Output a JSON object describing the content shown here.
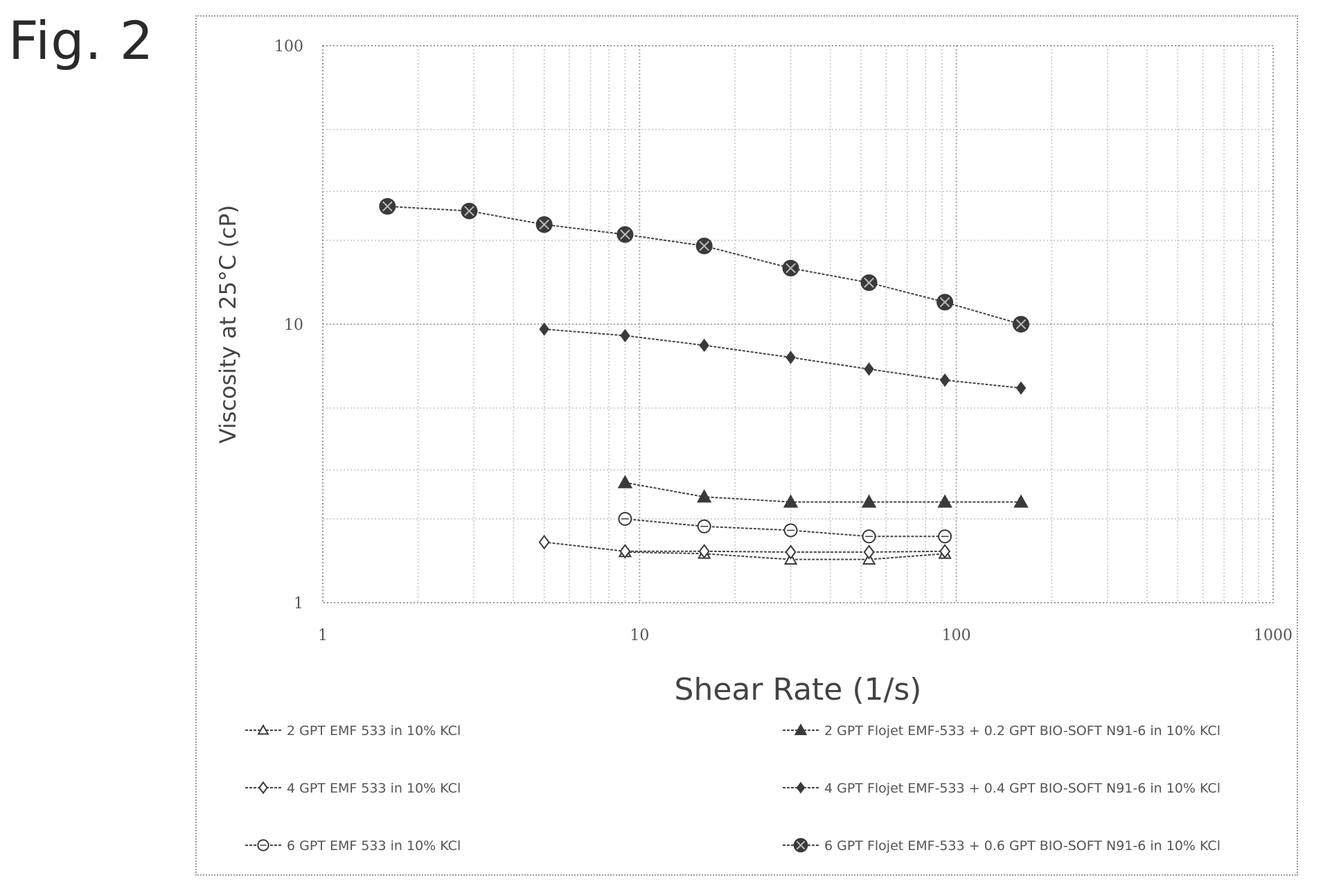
{
  "figure_label": "Fig. 2",
  "chart_data": {
    "type": "line",
    "xscale": "log",
    "yscale": "log",
    "xlim": [
      1,
      1000
    ],
    "ylim": [
      1,
      100
    ],
    "xticks": [
      "1",
      "10",
      "100",
      "1000"
    ],
    "yticks": [
      "1",
      "10",
      "100"
    ],
    "xlabel": "Shear Rate (1/s)",
    "ylabel": "Viscosity at 25°C (cP)",
    "grid": true,
    "legend_position": "bottom",
    "series": [
      {
        "name": "2 GPT EMF 533 in 10% KCl",
        "marker": "open-triangle",
        "x": [
          9,
          16,
          30,
          53,
          92
        ],
        "y": [
          1.52,
          1.5,
          1.43,
          1.43,
          1.5
        ]
      },
      {
        "name": "4 GPT EMF 533 in 10% KCl",
        "marker": "open-diamond",
        "x": [
          5,
          9,
          16,
          30,
          53,
          92
        ],
        "y": [
          1.65,
          1.53,
          1.53,
          1.52,
          1.52,
          1.53
        ]
      },
      {
        "name": "6 GPT EMF 533 in 10% KCl",
        "marker": "open-circle",
        "x": [
          9,
          16,
          30,
          53,
          92
        ],
        "y": [
          2.0,
          1.88,
          1.82,
          1.73,
          1.73
        ]
      },
      {
        "name": "2 GPT Flojet EMF-533 + 0.2 GPT BIO-SOFT N91-6 in 10% KCl",
        "marker": "filled-triangle",
        "x": [
          9,
          16,
          30,
          53,
          92,
          160
        ],
        "y": [
          2.7,
          2.4,
          2.3,
          2.3,
          2.3,
          2.3
        ]
      },
      {
        "name": "4 GPT Flojet EMF-533 + 0.4 GPT BIO-SOFT N91-6 in 10% KCl",
        "marker": "filled-diamond",
        "x": [
          5,
          9,
          16,
          30,
          53,
          92,
          160
        ],
        "y": [
          9.6,
          9.1,
          8.4,
          7.6,
          6.9,
          6.3,
          5.9
        ]
      },
      {
        "name": "6 GPT Flojet EMF-533 + 0.6 GPT BIO-SOFT N91-6 in 10% KCl",
        "marker": "filled-circle",
        "x": [
          1.6,
          2.9,
          5,
          9,
          16,
          30,
          53,
          92,
          160
        ],
        "y": [
          26.5,
          25.5,
          22.8,
          21.0,
          19.1,
          15.9,
          14.1,
          12.0,
          10.0
        ]
      }
    ]
  }
}
